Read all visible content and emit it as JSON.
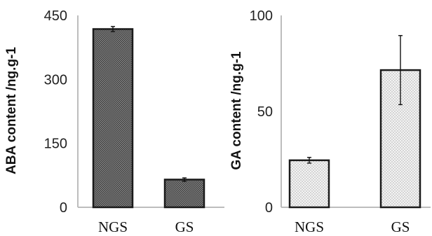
{
  "chart_data": [
    {
      "type": "bar",
      "title": "",
      "xlabel": "",
      "ylabel": "ABA content /ng.g-1",
      "ylim": [
        0,
        450
      ],
      "yticks": [
        0,
        150,
        300,
        450
      ],
      "categories": [
        "NGS",
        "GS"
      ],
      "values": [
        418,
        65
      ],
      "error": [
        6,
        4
      ],
      "pattern": "dense-dark",
      "grid": false
    },
    {
      "type": "bar",
      "title": "",
      "xlabel": "",
      "ylabel": "GA content /ng.g-1",
      "ylim": [
        0,
        100
      ],
      "yticks": [
        0,
        50,
        100
      ],
      "categories": [
        "NGS",
        "GS"
      ],
      "values": [
        24.5,
        71.5
      ],
      "error": [
        1.5,
        18
      ],
      "pattern": "sparse-light",
      "grid": false
    }
  ]
}
